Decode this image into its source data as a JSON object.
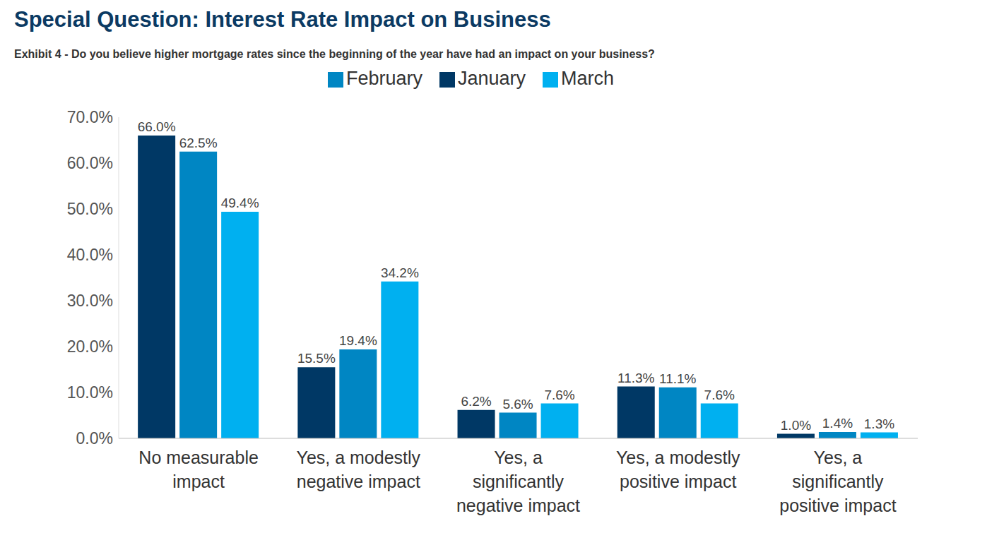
{
  "chart_data": {
    "type": "bar",
    "title": "Special Question: Interest Rate Impact on Business",
    "subtitle": "Exhibit 4 - Do you believe higher mortgage rates since the beginning of the year have had an impact on your business?",
    "categories": [
      "No measurable impact",
      "Yes, a modestly negative impact",
      "Yes, a significantly negative impact",
      "Yes, a modestly positive impact",
      "Yes, a significantly positive impact"
    ],
    "series": [
      {
        "name": "January",
        "color": "#003865",
        "values": [
          66.0,
          15.5,
          6.2,
          11.3,
          1.0
        ],
        "value_labels": [
          "66.0%",
          "15.5%",
          "6.2%",
          "11.3%",
          "1.0%"
        ]
      },
      {
        "name": "February",
        "color": "#0086c3",
        "values": [
          62.5,
          19.4,
          5.6,
          11.1,
          1.4
        ],
        "value_labels": [
          "62.5%",
          "19.4%",
          "5.6%",
          "11.1%",
          "1.4%"
        ]
      },
      {
        "name": "March",
        "color": "#00b0f0",
        "values": [
          49.4,
          34.2,
          7.6,
          7.6,
          1.3
        ],
        "value_labels": [
          "49.4%",
          "34.2%",
          "7.6%",
          "7.6%",
          "1.3%"
        ]
      }
    ],
    "ylim": [
      0,
      70
    ],
    "yticks": [
      {
        "value": 0,
        "label": "0.0%"
      },
      {
        "value": 10,
        "label": "10.0%"
      },
      {
        "value": 20,
        "label": "20.0%"
      },
      {
        "value": 30,
        "label": "30.0%"
      },
      {
        "value": 40,
        "label": "40.0%"
      },
      {
        "value": 50,
        "label": "50.0%"
      },
      {
        "value": 60,
        "label": "60.0%"
      },
      {
        "value": 70,
        "label": "70.0%"
      }
    ],
    "grid": false,
    "legend": "top",
    "data_labels": true
  }
}
